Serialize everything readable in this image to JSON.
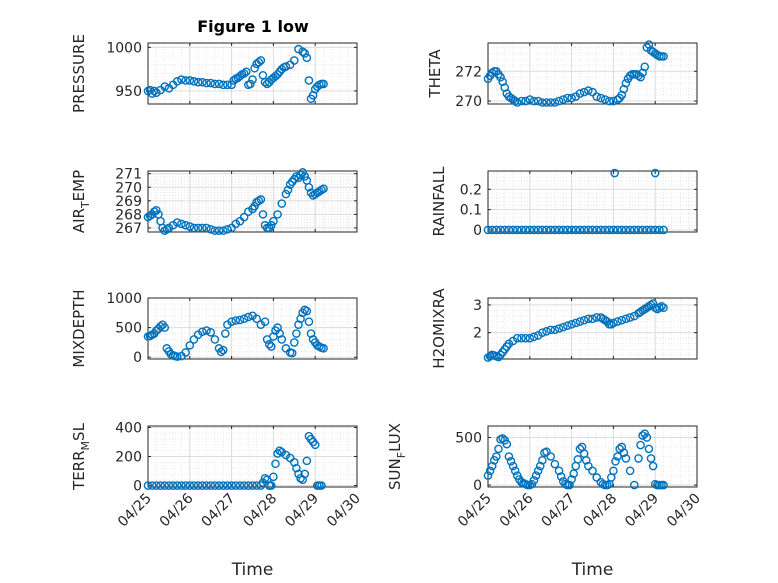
{
  "title": "Figure 1 low",
  "chart_data": [
    {
      "type": "scatter",
      "ylabel": "PRESSURE",
      "xlim": [
        0,
        5
      ],
      "ylim": [
        935,
        1005
      ],
      "yticks": [
        950,
        1000
      ],
      "yticklabels": [
        "950",
        "1000"
      ],
      "xticklabels": [],
      "color": "#0072BD",
      "marker": "circle-open",
      "grid": true,
      "minor_grid": true,
      "x": [
        0,
        0.05,
        0.1,
        0.15,
        0.2,
        0.3,
        0.4,
        0.5,
        0.6,
        0.7,
        0.8,
        0.9,
        1.0,
        1.1,
        1.2,
        1.3,
        1.4,
        1.5,
        1.6,
        1.7,
        1.8,
        1.9,
        2.0,
        2.05,
        2.1,
        2.15,
        2.2,
        2.25,
        2.3,
        2.35,
        2.4,
        2.45,
        2.5,
        2.55,
        2.6,
        2.65,
        2.7,
        2.75,
        2.8,
        2.85,
        2.9,
        2.95,
        3.0,
        3.05,
        3.1,
        3.15,
        3.2,
        3.25,
        3.3,
        3.4,
        3.5,
        3.6,
        3.7,
        3.75,
        3.8,
        3.85,
        3.9,
        3.95,
        4.0,
        4.05,
        4.1,
        4.15,
        4.2
      ],
      "y": [
        950,
        951,
        947,
        950,
        948,
        951,
        955,
        953,
        957,
        961,
        963,
        962,
        962,
        961,
        960,
        960,
        959,
        959,
        958,
        958,
        957,
        957,
        957,
        962,
        964,
        965,
        967,
        969,
        970,
        972,
        957,
        958,
        963,
        976,
        981,
        983,
        985,
        968,
        960,
        958,
        960,
        963,
        965,
        967,
        969,
        972,
        975,
        977,
        978,
        980,
        985,
        998,
        995,
        993,
        988,
        962,
        941,
        945,
        952,
        955,
        957,
        958,
        958
      ]
    },
    {
      "type": "scatter",
      "ylabel": "THETA",
      "xlim": [
        0,
        5
      ],
      "ylim": [
        269.8,
        273.9
      ],
      "yticks": [
        270,
        272
      ],
      "yticklabels": [
        "270",
        "272"
      ],
      "xticklabels": [],
      "color": "#0072BD",
      "marker": "circle-open",
      "grid": true,
      "minor_grid": true,
      "x": [
        0,
        0.05,
        0.1,
        0.15,
        0.2,
        0.25,
        0.3,
        0.35,
        0.4,
        0.45,
        0.5,
        0.55,
        0.6,
        0.65,
        0.7,
        0.8,
        0.9,
        1.0,
        1.1,
        1.2,
        1.3,
        1.4,
        1.5,
        1.6,
        1.7,
        1.8,
        1.9,
        2.0,
        2.1,
        2.2,
        2.3,
        2.4,
        2.5,
        2.6,
        2.7,
        2.8,
        2.9,
        3.0,
        3.1,
        3.15,
        3.2,
        3.25,
        3.3,
        3.35,
        3.4,
        3.45,
        3.5,
        3.55,
        3.6,
        3.65,
        3.7,
        3.75,
        3.8,
        3.85,
        3.9,
        3.95,
        4.0,
        4.05,
        4.1,
        4.15,
        4.2
      ],
      "y": [
        271.5,
        271.7,
        271.9,
        272.0,
        272.0,
        271.8,
        271.6,
        271.3,
        270.9,
        270.5,
        270.3,
        270.2,
        270.1,
        270.0,
        269.9,
        270.0,
        270.0,
        270.1,
        270.0,
        270.0,
        269.9,
        269.9,
        269.9,
        269.9,
        270.0,
        270.1,
        270.2,
        270.2,
        270.3,
        270.5,
        270.6,
        270.7,
        270.6,
        270.3,
        270.2,
        270.1,
        270.0,
        270.0,
        270.1,
        270.2,
        270.4,
        270.8,
        271.2,
        271.5,
        271.7,
        271.8,
        271.8,
        271.8,
        271.7,
        271.6,
        271.9,
        272.3,
        273.6,
        273.8,
        273.4,
        273.3,
        273.2,
        273.1,
        273.0,
        273.0,
        273.0
      ]
    },
    {
      "type": "scatter",
      "ylabel": "AIR_TEMP",
      "xlim": [
        0,
        5
      ],
      "ylim": [
        266.7,
        271.2
      ],
      "yticks": [
        267,
        268,
        269,
        270,
        271
      ],
      "yticklabels": [
        "267",
        "268",
        "269",
        "270",
        "271"
      ],
      "xticklabels": [],
      "color": "#0072BD",
      "marker": "circle-open",
      "grid": true,
      "minor_grid": true,
      "x": [
        0,
        0.05,
        0.1,
        0.15,
        0.2,
        0.25,
        0.3,
        0.35,
        0.4,
        0.45,
        0.5,
        0.6,
        0.7,
        0.8,
        0.9,
        1.0,
        1.1,
        1.2,
        1.3,
        1.4,
        1.5,
        1.6,
        1.7,
        1.8,
        1.9,
        2.0,
        2.1,
        2.2,
        2.3,
        2.4,
        2.5,
        2.55,
        2.6,
        2.65,
        2.7,
        2.75,
        2.8,
        2.85,
        2.9,
        2.95,
        3.0,
        3.1,
        3.2,
        3.3,
        3.35,
        3.4,
        3.45,
        3.5,
        3.55,
        3.6,
        3.65,
        3.7,
        3.75,
        3.8,
        3.85,
        3.9,
        3.95,
        4.0,
        4.05,
        4.1,
        4.15,
        4.2
      ],
      "y": [
        267.8,
        267.9,
        268.0,
        268.2,
        268.3,
        268.0,
        267.5,
        267.0,
        266.8,
        266.9,
        267.0,
        267.2,
        267.4,
        267.3,
        267.2,
        267.1,
        267.0,
        267.0,
        267.0,
        267.0,
        266.9,
        266.8,
        266.8,
        266.8,
        266.9,
        267.0,
        267.3,
        267.5,
        267.8,
        268.2,
        268.4,
        268.6,
        268.9,
        269.0,
        269.1,
        268.0,
        267.2,
        267.0,
        267.0,
        267.2,
        267.5,
        268.0,
        268.8,
        269.5,
        269.8,
        270.2,
        270.4,
        270.6,
        270.8,
        270.7,
        270.9,
        271.1,
        270.8,
        270.5,
        270.0,
        269.6,
        269.4,
        269.5,
        269.6,
        269.7,
        269.8,
        269.9
      ]
    },
    {
      "type": "scatter",
      "ylabel": "RAINFALL",
      "xlim": [
        0,
        5
      ],
      "ylim": [
        -0.01,
        0.29
      ],
      "yticks": [
        0,
        0.1,
        0.2
      ],
      "yticklabels": [
        "0",
        "0.1",
        "0.2"
      ],
      "xticklabels": [],
      "color": "#0072BD",
      "marker": "circle-open",
      "grid": true,
      "minor_grid": true,
      "x": [
        0,
        0.1,
        0.2,
        0.3,
        0.4,
        0.5,
        0.6,
        0.7,
        0.8,
        0.9,
        1.0,
        1.1,
        1.2,
        1.3,
        1.4,
        1.5,
        1.6,
        1.7,
        1.8,
        1.9,
        2.0,
        2.1,
        2.2,
        2.3,
        2.4,
        2.5,
        2.6,
        2.7,
        2.8,
        2.9,
        3.0,
        3.1,
        3.2,
        3.3,
        3.4,
        3.5,
        3.6,
        3.7,
        3.8,
        3.9,
        4.0,
        4.1,
        4.2,
        3.03,
        4.0
      ],
      "y": [
        0,
        0,
        0,
        0,
        0,
        0,
        0,
        0,
        0,
        0,
        0,
        0,
        0,
        0,
        0,
        0,
        0,
        0,
        0,
        0,
        0,
        0,
        0,
        0,
        0,
        0,
        0,
        0,
        0,
        0,
        0,
        0,
        0,
        0,
        0,
        0,
        0,
        0,
        0,
        0,
        0,
        0,
        0,
        0.28,
        0.28
      ]
    },
    {
      "type": "scatter",
      "ylabel": "MIXDEPTH",
      "xlim": [
        0,
        5
      ],
      "ylim": [
        -30,
        1000
      ],
      "yticks": [
        0,
        500,
        1000
      ],
      "yticklabels": [
        "0",
        "500",
        "1000"
      ],
      "xticklabels": [],
      "color": "#0072BD",
      "marker": "circle-open",
      "grid": true,
      "minor_grid": true,
      "x": [
        0,
        0.05,
        0.1,
        0.15,
        0.2,
        0.25,
        0.3,
        0.35,
        0.4,
        0.45,
        0.5,
        0.55,
        0.6,
        0.65,
        0.7,
        0.8,
        0.9,
        1.0,
        1.1,
        1.2,
        1.3,
        1.4,
        1.5,
        1.6,
        1.7,
        1.75,
        1.8,
        1.85,
        1.9,
        2.0,
        2.1,
        2.2,
        2.3,
        2.4,
        2.5,
        2.6,
        2.7,
        2.8,
        2.85,
        2.9,
        2.95,
        3.0,
        3.05,
        3.1,
        3.15,
        3.2,
        3.3,
        3.4,
        3.45,
        3.5,
        3.55,
        3.6,
        3.65,
        3.7,
        3.75,
        3.8,
        3.85,
        3.9,
        3.95,
        4.0,
        4.05,
        4.1,
        4.15,
        4.2
      ],
      "y": [
        350,
        360,
        380,
        400,
        450,
        480,
        520,
        550,
        500,
        150,
        100,
        50,
        30,
        20,
        10,
        20,
        80,
        200,
        300,
        380,
        430,
        450,
        420,
        300,
        150,
        90,
        120,
        400,
        550,
        600,
        620,
        630,
        650,
        680,
        700,
        650,
        550,
        600,
        300,
        220,
        180,
        350,
        450,
        500,
        400,
        300,
        150,
        80,
        70,
        250,
        400,
        550,
        650,
        750,
        800,
        780,
        600,
        400,
        300,
        250,
        200,
        180,
        160,
        150
      ]
    },
    {
      "type": "scatter",
      "ylabel": "H2OMIXRA",
      "xlim": [
        0,
        5
      ],
      "ylim": [
        1.05,
        3.25
      ],
      "yticks": [
        2,
        3
      ],
      "yticklabels": [
        "2",
        "3"
      ],
      "xticklabels": [],
      "color": "#0072BD",
      "marker": "circle-open",
      "grid": true,
      "minor_grid": true,
      "x": [
        0,
        0.05,
        0.1,
        0.15,
        0.2,
        0.25,
        0.3,
        0.35,
        0.4,
        0.45,
        0.5,
        0.6,
        0.7,
        0.8,
        0.9,
        1.0,
        1.1,
        1.2,
        1.3,
        1.4,
        1.5,
        1.6,
        1.7,
        1.8,
        1.9,
        2.0,
        2.1,
        2.2,
        2.3,
        2.4,
        2.5,
        2.6,
        2.7,
        2.75,
        2.8,
        2.85,
        2.9,
        2.95,
        3.0,
        3.1,
        3.2,
        3.3,
        3.4,
        3.5,
        3.6,
        3.65,
        3.7,
        3.75,
        3.8,
        3.85,
        3.9,
        3.95,
        4.0,
        4.05,
        4.1,
        4.15,
        4.2
      ],
      "y": [
        1.1,
        1.15,
        1.2,
        1.18,
        1.15,
        1.12,
        1.2,
        1.3,
        1.4,
        1.5,
        1.6,
        1.7,
        1.8,
        1.8,
        1.8,
        1.8,
        1.85,
        1.9,
        2.0,
        2.05,
        2.1,
        2.1,
        2.15,
        2.2,
        2.25,
        2.3,
        2.35,
        2.4,
        2.45,
        2.5,
        2.5,
        2.55,
        2.55,
        2.5,
        2.45,
        2.4,
        2.3,
        2.3,
        2.35,
        2.4,
        2.45,
        2.5,
        2.55,
        2.6,
        2.7,
        2.75,
        2.8,
        2.85,
        2.9,
        2.95,
        3.0,
        3.05,
        2.9,
        2.85,
        2.9,
        2.95,
        2.9
      ]
    },
    {
      "type": "scatter",
      "ylabel": "TERR_MSL",
      "xlim": [
        0,
        5
      ],
      "ylim": [
        -10,
        410
      ],
      "yticks": [
        0,
        200,
        400
      ],
      "yticklabels": [
        "0",
        "200",
        "400"
      ],
      "xticklabels": [
        "04/25",
        "04/26",
        "04/27",
        "04/28",
        "04/29",
        "04/30"
      ],
      "xlabel": "Time",
      "color": "#0072BD",
      "marker": "circle-open",
      "grid": true,
      "minor_grid": true,
      "x": [
        0,
        0.1,
        0.2,
        0.3,
        0.4,
        0.5,
        0.6,
        0.7,
        0.8,
        0.9,
        1.0,
        1.1,
        1.2,
        1.3,
        1.4,
        1.5,
        1.6,
        1.7,
        1.8,
        1.9,
        2.0,
        2.1,
        2.2,
        2.3,
        2.4,
        2.5,
        2.6,
        2.7,
        2.75,
        2.8,
        2.85,
        2.9,
        2.95,
        3.0,
        3.05,
        3.1,
        3.15,
        3.2,
        3.3,
        3.4,
        3.5,
        3.55,
        3.6,
        3.65,
        3.7,
        3.75,
        3.8,
        3.85,
        3.9,
        3.95,
        4.0,
        4.05,
        4.1,
        4.15
      ],
      "y": [
        0,
        0,
        0,
        0,
        0,
        0,
        0,
        0,
        0,
        0,
        0,
        0,
        0,
        0,
        0,
        0,
        0,
        0,
        0,
        0,
        0,
        0,
        0,
        0,
        0,
        0,
        0,
        0,
        20,
        50,
        40,
        0,
        0,
        60,
        150,
        220,
        240,
        230,
        210,
        190,
        160,
        120,
        80,
        50,
        40,
        80,
        170,
        340,
        320,
        300,
        280,
        0,
        0,
        0
      ]
    },
    {
      "type": "scatter",
      "ylabel": "SUN_FLUX",
      "xlim": [
        0,
        5
      ],
      "ylim": [
        -20,
        620
      ],
      "yticks": [
        0,
        500
      ],
      "yticklabels": [
        "0",
        "500"
      ],
      "xticklabels": [
        "04/25",
        "04/26",
        "04/27",
        "04/28",
        "04/29",
        "04/30"
      ],
      "xlabel": "Time",
      "color": "#0072BD",
      "marker": "circle-open",
      "grid": true,
      "minor_grid": true,
      "x": [
        0,
        0.05,
        0.1,
        0.15,
        0.2,
        0.25,
        0.3,
        0.35,
        0.4,
        0.45,
        0.5,
        0.55,
        0.6,
        0.65,
        0.7,
        0.75,
        0.8,
        0.85,
        0.9,
        0.95,
        1.0,
        1.05,
        1.1,
        1.15,
        1.2,
        1.25,
        1.3,
        1.35,
        1.4,
        1.5,
        1.6,
        1.7,
        1.75,
        1.8,
        1.85,
        1.9,
        1.95,
        2.0,
        2.05,
        2.1,
        2.15,
        2.2,
        2.25,
        2.3,
        2.35,
        2.4,
        2.5,
        2.6,
        2.7,
        2.75,
        2.8,
        2.85,
        2.9,
        2.95,
        3.0,
        3.05,
        3.1,
        3.15,
        3.2,
        3.25,
        3.3,
        3.4,
        3.5,
        3.6,
        3.65,
        3.7,
        3.75,
        3.8,
        3.85,
        3.9,
        3.95,
        4.0,
        4.05,
        4.1,
        4.15,
        4.2
      ],
      "y": [
        100,
        150,
        200,
        260,
        300,
        380,
        480,
        490,
        470,
        430,
        300,
        250,
        200,
        150,
        100,
        60,
        30,
        20,
        10,
        0,
        0,
        10,
        50,
        100,
        150,
        200,
        260,
        340,
        350,
        300,
        220,
        150,
        90,
        40,
        10,
        0,
        0,
        60,
        120,
        200,
        270,
        380,
        400,
        330,
        260,
        200,
        150,
        80,
        30,
        10,
        0,
        0,
        10,
        80,
        150,
        250,
        300,
        380,
        400,
        340,
        280,
        150,
        0,
        280,
        420,
        520,
        540,
        500,
        380,
        280,
        200,
        10,
        0,
        0,
        0,
        0
      ]
    }
  ]
}
